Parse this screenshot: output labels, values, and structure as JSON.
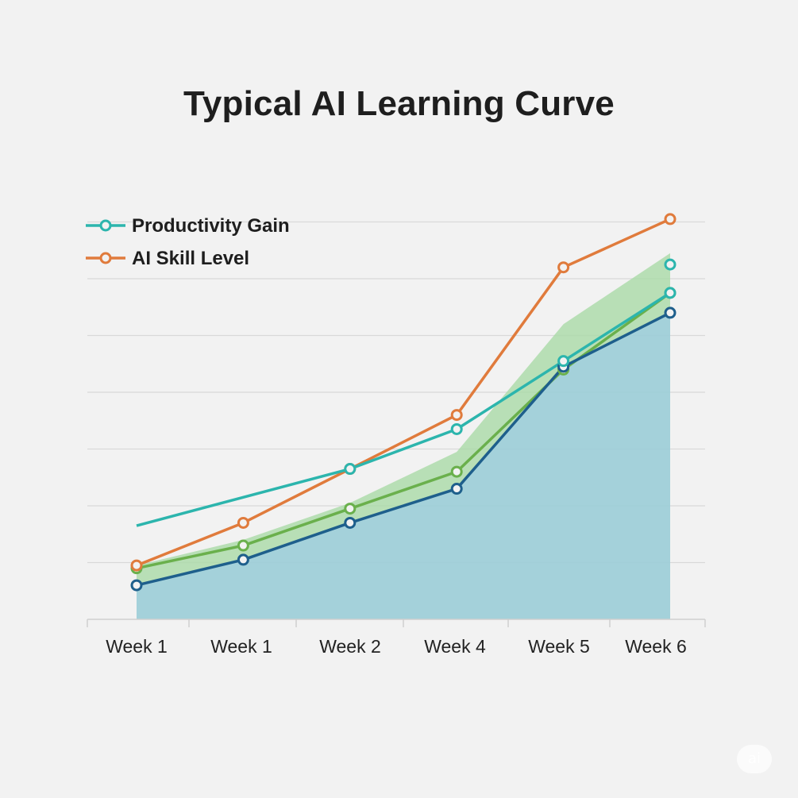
{
  "chart_data": {
    "type": "line",
    "title": "Typical AI Learning Curve",
    "categories": [
      "Week 1",
      "Week 1",
      "Week 2",
      "Week 4",
      "Week 5",
      "Week 6"
    ],
    "xlabel": "",
    "ylabel": "",
    "ylim": [
      0,
      7
    ],
    "grid": true,
    "legend": {
      "position": "top-left",
      "entries": [
        "Productivity Gain",
        "AI Skill Level"
      ]
    },
    "series": [
      {
        "name": "Productivity Gain",
        "color": "#2cb5ad",
        "x": [
          1,
          3,
          4,
          5,
          6
        ],
        "values": [
          1.65,
          2.65,
          3.35,
          4.55,
          5.75
        ],
        "extra_marker": [
          6,
          6.25
        ]
      },
      {
        "name": "AI Skill Level",
        "color": "#e07b3c",
        "x": [
          1,
          2,
          3,
          4,
          5,
          6
        ],
        "values": [
          0.95,
          1.7,
          2.65,
          3.6,
          6.2,
          7.05
        ]
      },
      {
        "name": "",
        "color": "#6ab04c",
        "x": [
          1,
          2,
          3,
          4,
          5,
          6
        ],
        "values": [
          0.9,
          1.3,
          1.95,
          2.6,
          4.4,
          5.75
        ]
      },
      {
        "name": "",
        "color": "#1e5f8c",
        "x": [
          1,
          2,
          3,
          4,
          5,
          6
        ],
        "values": [
          0.6,
          1.05,
          1.7,
          2.3,
          4.45,
          5.4
        ]
      }
    ],
    "bands": [
      {
        "color": "#a9d9a6",
        "x": [
          1,
          2,
          3,
          4,
          5,
          6
        ],
        "upper": [
          0.95,
          1.4,
          2.05,
          2.95,
          5.2,
          6.45
        ],
        "lower": [
          0.6,
          1.05,
          1.7,
          2.3,
          4.45,
          5.4
        ]
      }
    ],
    "area": {
      "color": "#9fcfd8",
      "x": [
        1,
        2,
        3,
        4,
        5,
        6
      ],
      "values": [
        0.6,
        1.05,
        1.7,
        2.3,
        4.45,
        5.4
      ]
    }
  },
  "watermark": "ai"
}
